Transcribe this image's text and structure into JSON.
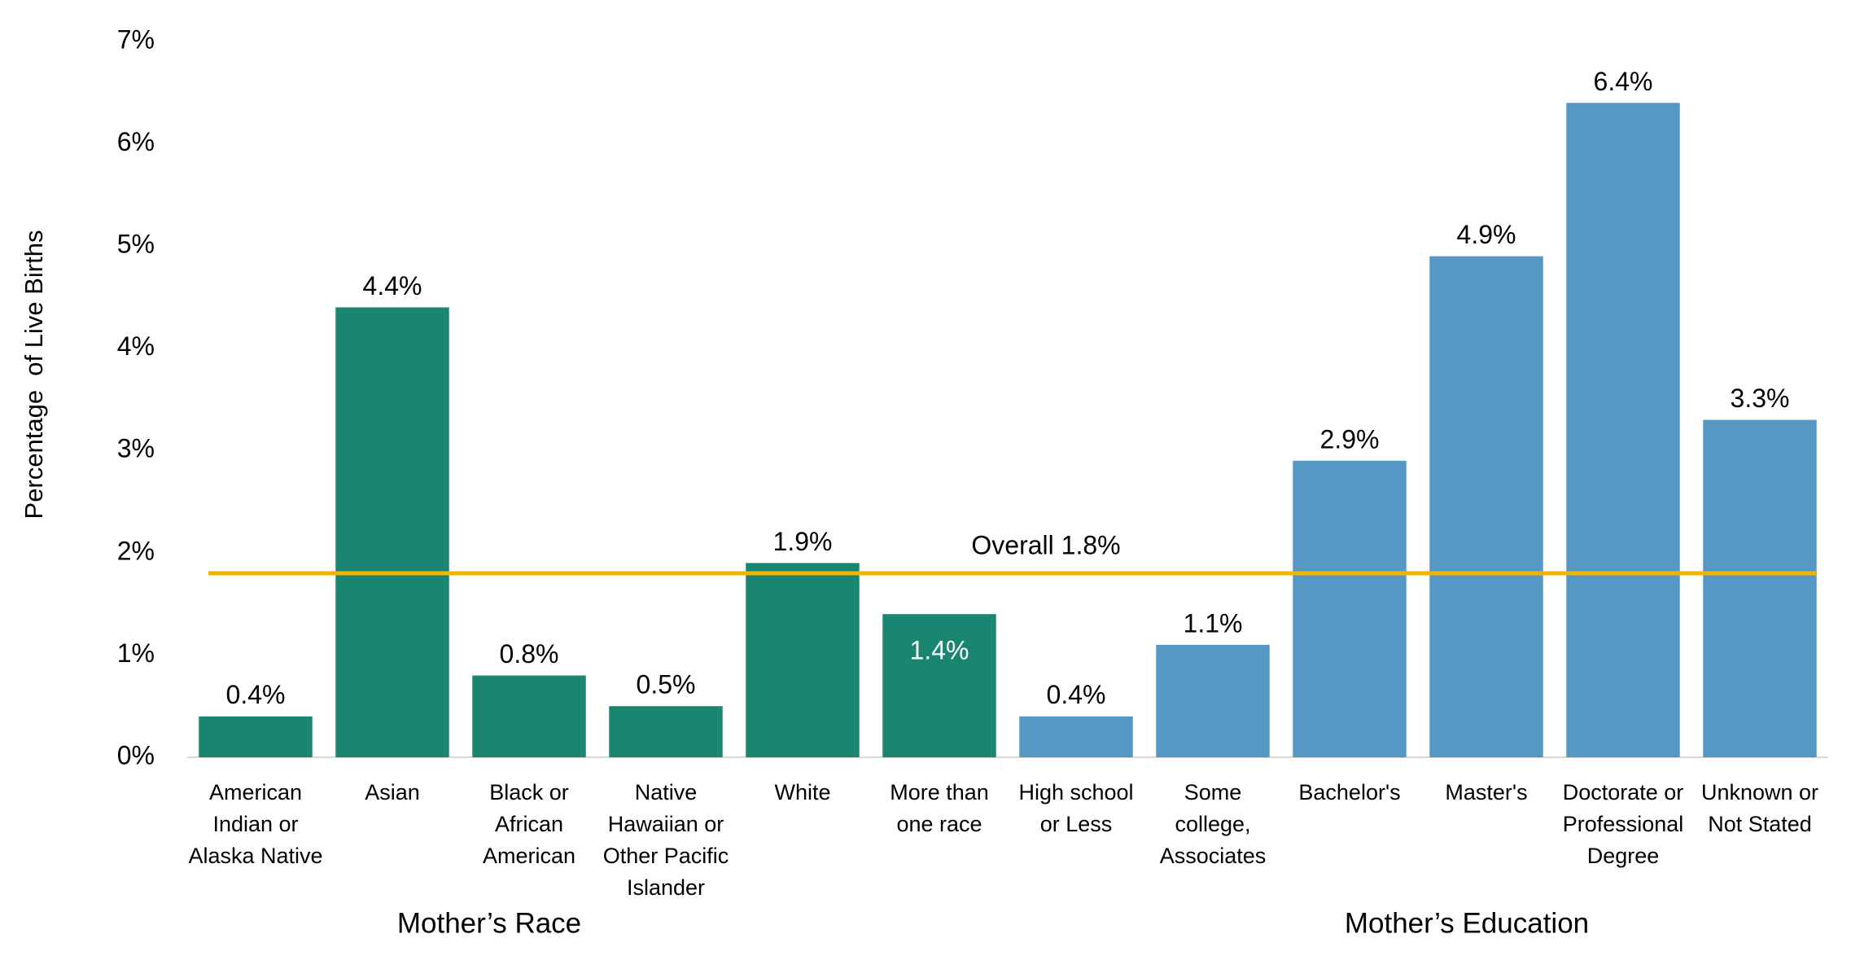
{
  "chart_data": {
    "type": "bar",
    "y_label": "Percentage  of Live Births",
    "categories": [
      "American Indian or Alaska Native",
      "Asian",
      "Black or African American",
      "Native Hawaiian or Other Pacific Islander",
      "White",
      "More than one race",
      "High school or Less",
      "Some college, Associates",
      "Bachelor's",
      "Master's",
      "Doctorate or Professional Degree",
      "Unknown or Not Stated"
    ],
    "values": [
      0.4,
      4.4,
      0.8,
      0.5,
      1.9,
      1.4,
      0.4,
      1.1,
      2.9,
      4.9,
      6.4,
      3.3
    ],
    "value_labels": [
      "0.4%",
      "4.4%",
      "0.8%",
      "0.5%",
      "1.9%",
      "1.4%",
      "0.4%",
      "1.1%",
      "2.9%",
      "4.9%",
      "6.4%",
      "3.3%"
    ],
    "value_label_colors": [
      "#000000",
      "#000000",
      "#000000",
      "#000000",
      "#000000",
      "#ffffff",
      "#000000",
      "#000000",
      "#000000",
      "#000000",
      "#000000",
      "#000000"
    ],
    "colors": [
      "#1a8570",
      "#1a8570",
      "#1a8570",
      "#1a8570",
      "#1a8570",
      "#1a8570",
      "#5797c4",
      "#5797c4",
      "#5797c4",
      "#5797c4",
      "#5797c4",
      "#5797c4"
    ],
    "groups": [
      "Mother’s Race",
      "Mother’s Education"
    ],
    "reference_line": {
      "value": 1.8,
      "label": "Overall 1.8%",
      "color": "#f5b400"
    },
    "ylim": [
      0,
      7
    ],
    "yticks": [
      {
        "value": 0,
        "label": "0%"
      },
      {
        "value": 1,
        "label": "1%"
      },
      {
        "value": 2,
        "label": "2%"
      },
      {
        "value": 3,
        "label": "3%"
      },
      {
        "value": 4,
        "label": "4%"
      },
      {
        "value": 5,
        "label": "5%"
      },
      {
        "value": 6,
        "label": "6%"
      },
      {
        "value": 7,
        "label": "7%"
      }
    ],
    "grid": false
  }
}
